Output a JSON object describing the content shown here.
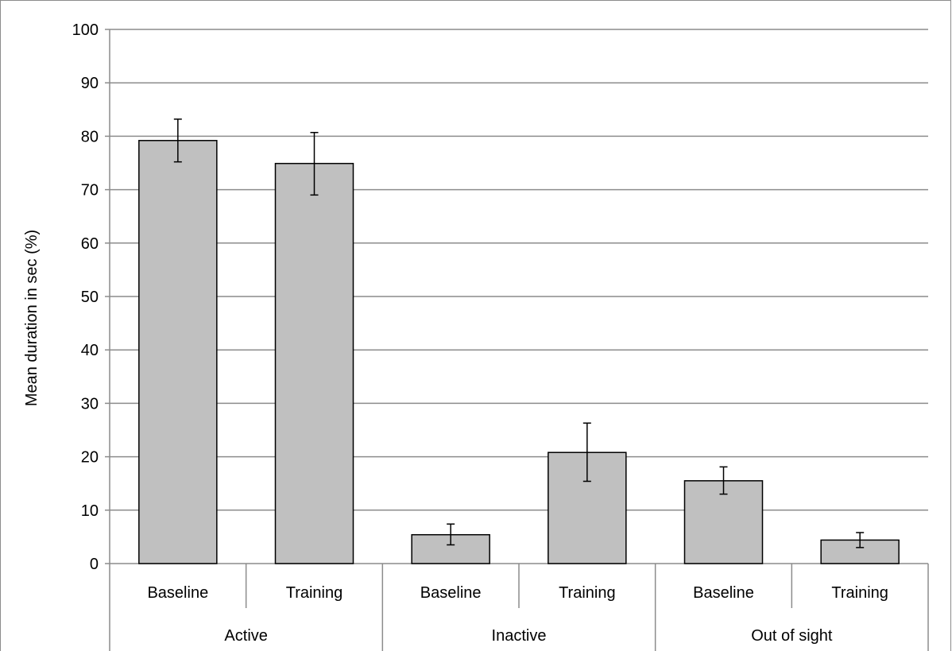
{
  "chart_data": {
    "type": "bar",
    "ylabel": "Mean duration in sec (%)",
    "xlabel": "",
    "ylim": [
      0,
      100
    ],
    "yticks": [
      0,
      10,
      20,
      30,
      40,
      50,
      60,
      70,
      80,
      90,
      100
    ],
    "grid": true,
    "groups": [
      {
        "label": "Active",
        "bars": [
          {
            "label": "Baseline",
            "value": 79.2,
            "err_low": 75.2,
            "err_high": 83.2
          },
          {
            "label": "Training",
            "value": 74.9,
            "err_low": 69.0,
            "err_high": 80.7
          }
        ]
      },
      {
        "label": "Inactive",
        "bars": [
          {
            "label": "Baseline",
            "value": 5.4,
            "err_low": 3.5,
            "err_high": 7.4
          },
          {
            "label": "Training",
            "value": 20.8,
            "err_low": 15.4,
            "err_high": 26.3
          }
        ]
      },
      {
        "label": "Out of sight",
        "bars": [
          {
            "label": "Baseline",
            "value": 15.5,
            "err_low": 13.0,
            "err_high": 18.1
          },
          {
            "label": "Training",
            "value": 4.4,
            "err_low": 3.0,
            "err_high": 5.8
          }
        ]
      }
    ],
    "colors": {
      "bar_fill": "#c0c0c0",
      "bar_stroke": "#000000",
      "grid": "#8c8c8c",
      "axis": "#8c8c8c"
    }
  }
}
